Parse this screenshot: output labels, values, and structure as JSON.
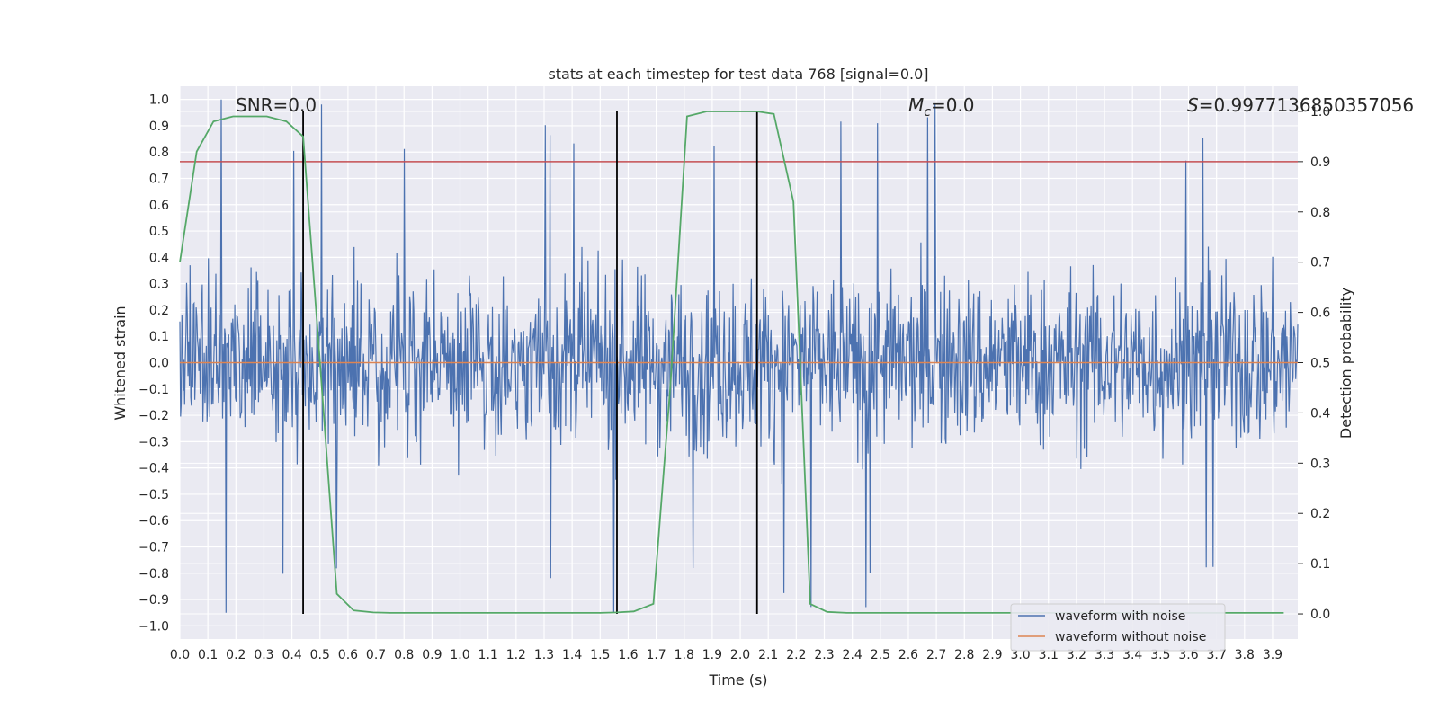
{
  "chart_data": {
    "type": "line",
    "title": "stats at each timestep for test data 768 [signal=0.0]",
    "xlabel": "Time (s)",
    "ylabel": "Whitened strain",
    "y2label": "Detection probability",
    "xlim": [
      0.0,
      3.99
    ],
    "ylim": [
      -1.05,
      1.05
    ],
    "y2lim": [
      -0.05,
      1.05
    ],
    "grid": true,
    "legend_position": "bottom-right",
    "x_ticks": [
      "0.0",
      "0.1",
      "0.2",
      "0.3",
      "0.4",
      "0.5",
      "0.6",
      "0.7",
      "0.8",
      "0.9",
      "1.0",
      "1.1",
      "1.2",
      "1.3",
      "1.4",
      "1.5",
      "1.6",
      "1.7",
      "1.8",
      "1.9",
      "2.0",
      "2.1",
      "2.2",
      "2.3",
      "2.4",
      "2.5",
      "2.6",
      "2.7",
      "2.8",
      "2.9",
      "3.0",
      "3.1",
      "3.2",
      "3.3",
      "3.4",
      "3.5",
      "3.6",
      "3.7",
      "3.8",
      "3.9"
    ],
    "y_ticks": [
      "1.0",
      "0.9",
      "0.8",
      "0.7",
      "0.6",
      "0.5",
      "0.4",
      "0.3",
      "0.2",
      "0.1",
      "0.0",
      "−0.1",
      "−0.2",
      "−0.3",
      "−0.4",
      "−0.5",
      "−0.6",
      "−0.7",
      "−0.8",
      "−0.9",
      "−1.0"
    ],
    "y2_ticks": [
      "1.0",
      "0.9",
      "0.8",
      "0.7",
      "0.6",
      "0.5",
      "0.4",
      "0.3",
      "0.2",
      "0.1",
      "0.0"
    ],
    "annotations": {
      "snr": "SNR=0.0",
      "mc_symbol": "M",
      "mc_sub": "c",
      "mc_value": "=0.0",
      "s_symbol": "S",
      "s_value": "=0.9977136850357056"
    },
    "series": [
      {
        "name": "waveform with noise",
        "axis": "left",
        "color": "#4c72b0",
        "description_stats": {
          "approx_range": [
            -0.92,
            1.0
          ],
          "samples": "dense noise"
        }
      },
      {
        "name": "waveform without noise",
        "axis": "left",
        "color": "#dd8452",
        "values_constant": 0.0
      },
      {
        "axis": "right",
        "color": "#55a868",
        "x": [
          0.0,
          0.06,
          0.12,
          0.19,
          0.25,
          0.31,
          0.38,
          0.44,
          0.5,
          0.56,
          0.62,
          0.69,
          0.75,
          0.81,
          0.88,
          0.94,
          1.0,
          1.06,
          1.12,
          1.19,
          1.25,
          1.31,
          1.38,
          1.44,
          1.5,
          1.56,
          1.62,
          1.69,
          1.75,
          1.81,
          1.88,
          1.94,
          2.0,
          2.06,
          2.12,
          2.19,
          2.25,
          2.31,
          2.38,
          2.44,
          2.5,
          2.56,
          2.62,
          2.69,
          2.75,
          2.81,
          2.88,
          2.94,
          3.0,
          3.06,
          3.12,
          3.19,
          3.25,
          3.31,
          3.38,
          3.44,
          3.5,
          3.56,
          3.62,
          3.69,
          3.75,
          3.81,
          3.88,
          3.94
        ],
        "values": [
          0.7,
          0.92,
          0.98,
          0.99,
          0.99,
          0.99,
          0.98,
          0.95,
          0.5,
          0.04,
          0.007,
          0.003,
          0.002,
          0.002,
          0.002,
          0.002,
          0.002,
          0.002,
          0.002,
          0.002,
          0.002,
          0.002,
          0.002,
          0.002,
          0.002,
          0.003,
          0.005,
          0.02,
          0.45,
          0.99,
          1.0,
          1.0,
          1.0,
          1.0,
          0.995,
          0.82,
          0.02,
          0.004,
          0.002,
          0.002,
          0.002,
          0.002,
          0.002,
          0.002,
          0.002,
          0.002,
          0.002,
          0.002,
          0.002,
          0.002,
          0.002,
          0.002,
          0.002,
          0.002,
          0.002,
          0.002,
          0.002,
          0.002,
          0.002,
          0.002,
          0.002,
          0.002,
          0.002,
          0.002
        ]
      }
    ],
    "threshold_y2": 0.9,
    "threshold_color": "#c44e52",
    "vertical_lines_x": [
      0.44,
      1.56,
      2.06
    ]
  }
}
